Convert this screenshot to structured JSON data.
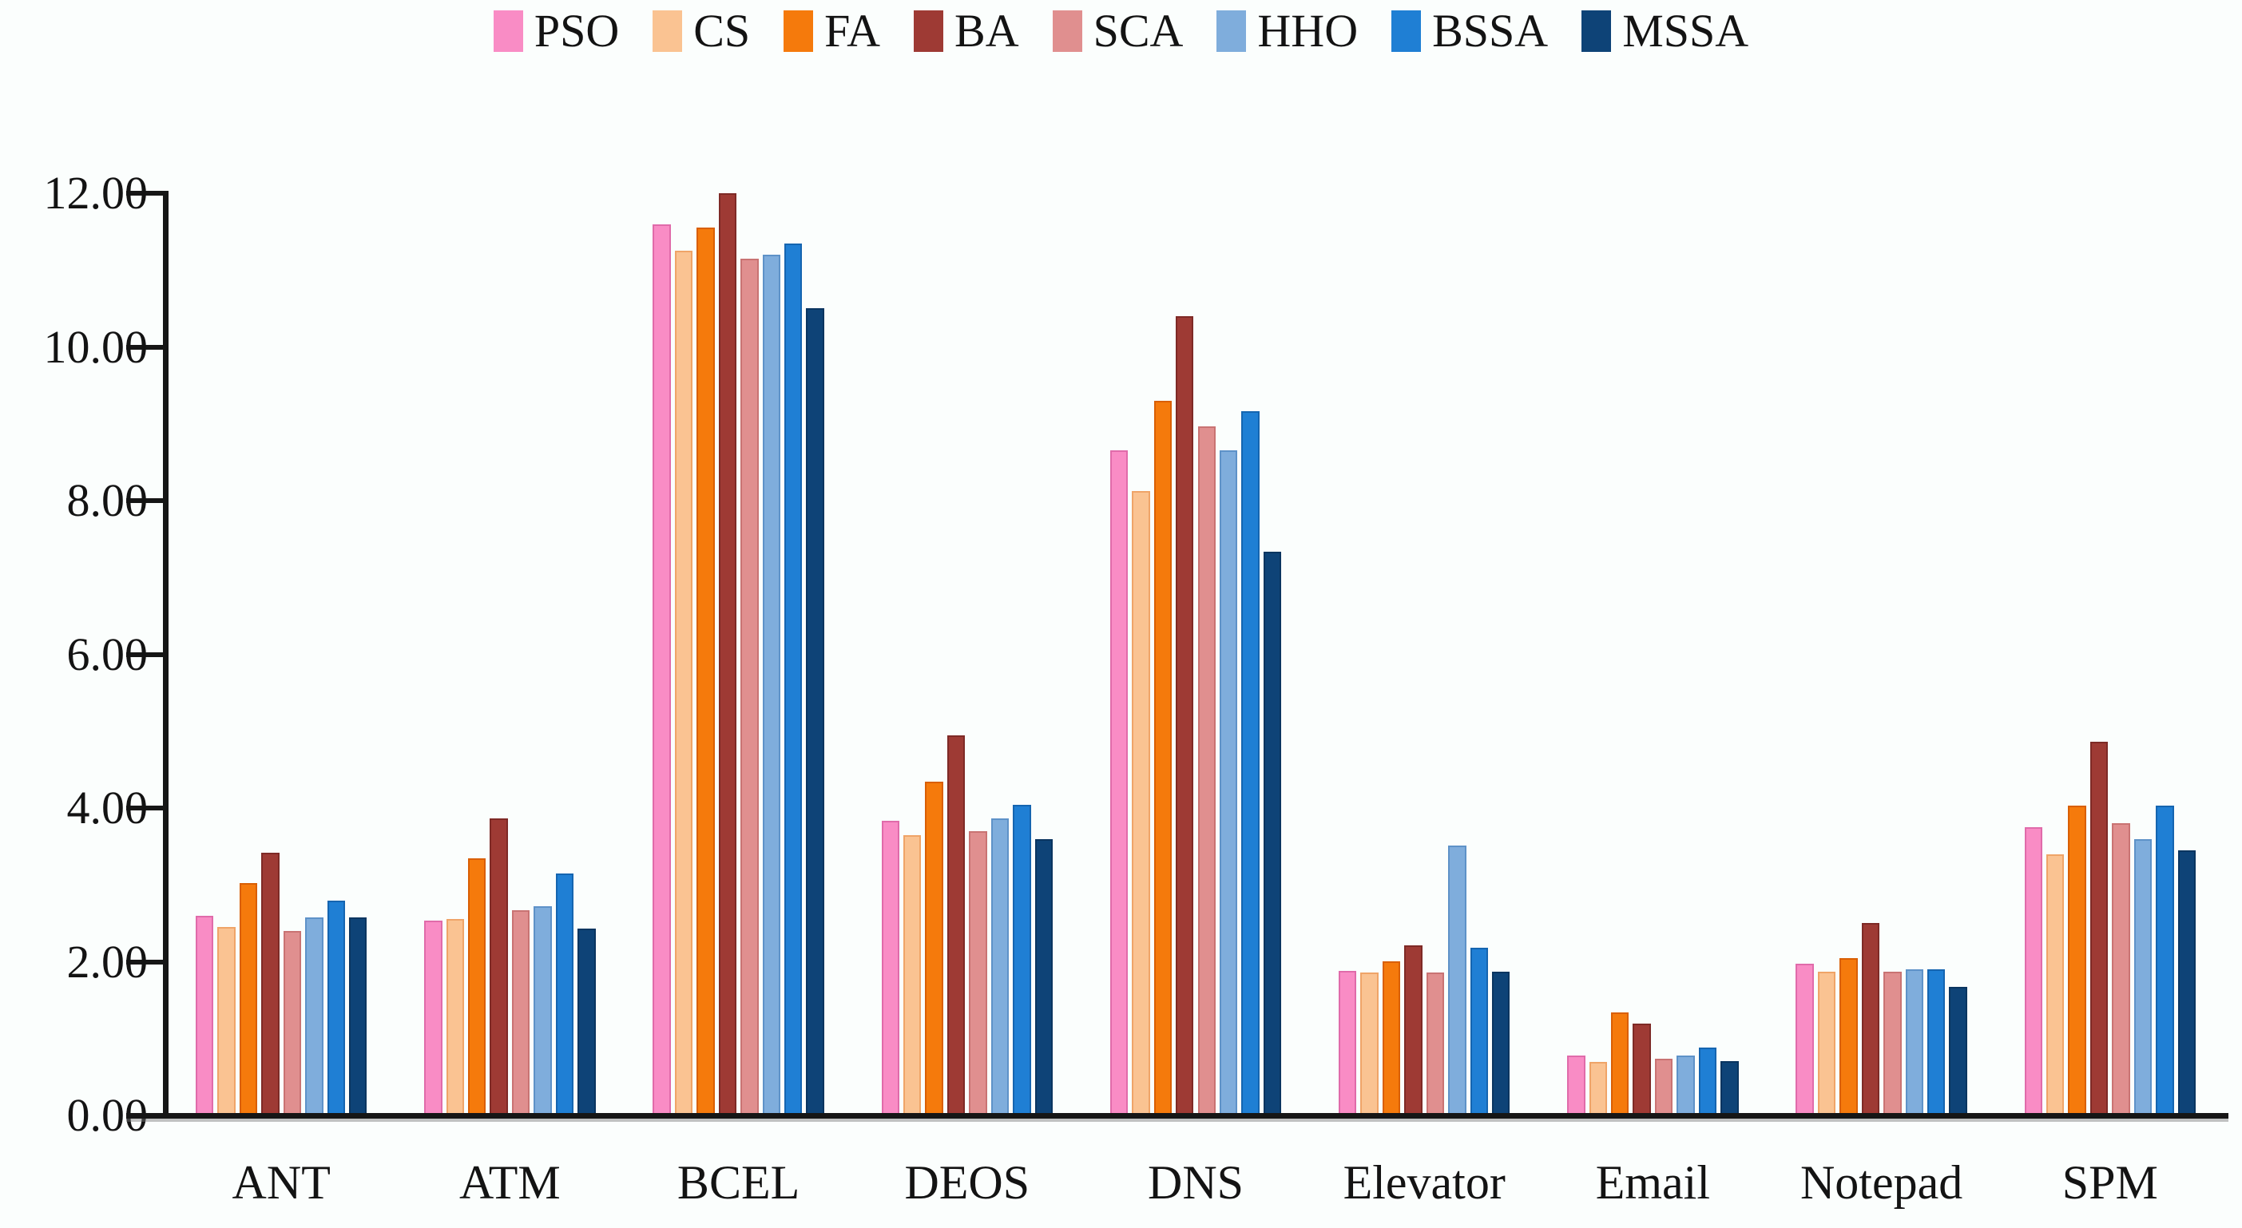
{
  "figure": {
    "background": "#FBFEFD",
    "text_color": "#131313",
    "axis_color": "#161616"
  },
  "legend": {
    "position": "top-center",
    "items": [
      {
        "label": "PSO",
        "color": "#F98CC5",
        "border": "#E06BAA"
      },
      {
        "label": "CS",
        "color": "#FAC392",
        "border": "#EFA468"
      },
      {
        "label": "FA",
        "color": "#F57A0C",
        "border": "#D95F04"
      },
      {
        "label": "BA",
        "color": "#9E3A34",
        "border": "#7E2A26"
      },
      {
        "label": "SCA",
        "color": "#E08F8F",
        "border": "#C97373"
      },
      {
        "label": "HHO",
        "color": "#7FADDC",
        "border": "#5E92C8"
      },
      {
        "label": "BSSA",
        "color": "#1F7FD4",
        "border": "#1565B0"
      },
      {
        "label": "MSSA",
        "color": "#0E4377",
        "border": "#0A3560"
      }
    ]
  },
  "chart_data": {
    "type": "bar",
    "title": "",
    "xlabel": "",
    "ylabel": "",
    "grid": false,
    "legend_position": "top",
    "ylim": [
      0,
      12
    ],
    "ytick_step": 2,
    "ytick_labels": [
      "0.00",
      "2.00",
      "4.00",
      "6.00",
      "8.00",
      "10.00",
      "12.00"
    ],
    "categories": [
      "ANT",
      "ATM",
      "BCEL",
      "DEOS",
      "DNS",
      "Elevator",
      "Email",
      "Notepad",
      "SPM"
    ],
    "series": [
      {
        "name": "PSO",
        "color": "#F98CC5",
        "border": "#E06BAA",
        "values": [
          2.6,
          2.53,
          11.6,
          3.83,
          8.65,
          1.88,
          0.78,
          1.97,
          3.75
        ]
      },
      {
        "name": "CS",
        "color": "#FAC392",
        "border": "#EFA468",
        "values": [
          2.45,
          2.56,
          11.25,
          3.65,
          8.12,
          1.86,
          0.7,
          1.87,
          3.4
        ]
      },
      {
        "name": "FA",
        "color": "#F57A0C",
        "border": "#D95F04",
        "values": [
          3.02,
          3.35,
          11.55,
          4.34,
          9.3,
          2.01,
          1.34,
          2.05,
          4.03
        ]
      },
      {
        "name": "BA",
        "color": "#9E3A34",
        "border": "#7E2A26",
        "values": [
          3.42,
          3.87,
          12.0,
          4.95,
          10.4,
          2.21,
          1.2,
          2.5,
          4.86
        ]
      },
      {
        "name": "SCA",
        "color": "#E08F8F",
        "border": "#C97373",
        "values": [
          2.4,
          2.67,
          11.15,
          3.7,
          8.97,
          1.86,
          0.74,
          1.87,
          3.8
        ]
      },
      {
        "name": "HHO",
        "color": "#7FADDC",
        "border": "#5E92C8",
        "values": [
          2.58,
          2.72,
          11.2,
          3.86,
          8.65,
          3.51,
          0.78,
          1.9,
          3.6
        ]
      },
      {
        "name": "BSSA",
        "color": "#1F7FD4",
        "border": "#1565B0",
        "values": [
          2.8,
          3.15,
          11.35,
          4.04,
          9.16,
          2.18,
          0.88,
          1.9,
          4.03
        ]
      },
      {
        "name": "MSSA",
        "color": "#0E4377",
        "border": "#0A3560",
        "values": [
          2.58,
          2.43,
          10.5,
          3.6,
          7.33,
          1.87,
          0.71,
          1.67,
          3.45
        ]
      }
    ]
  }
}
